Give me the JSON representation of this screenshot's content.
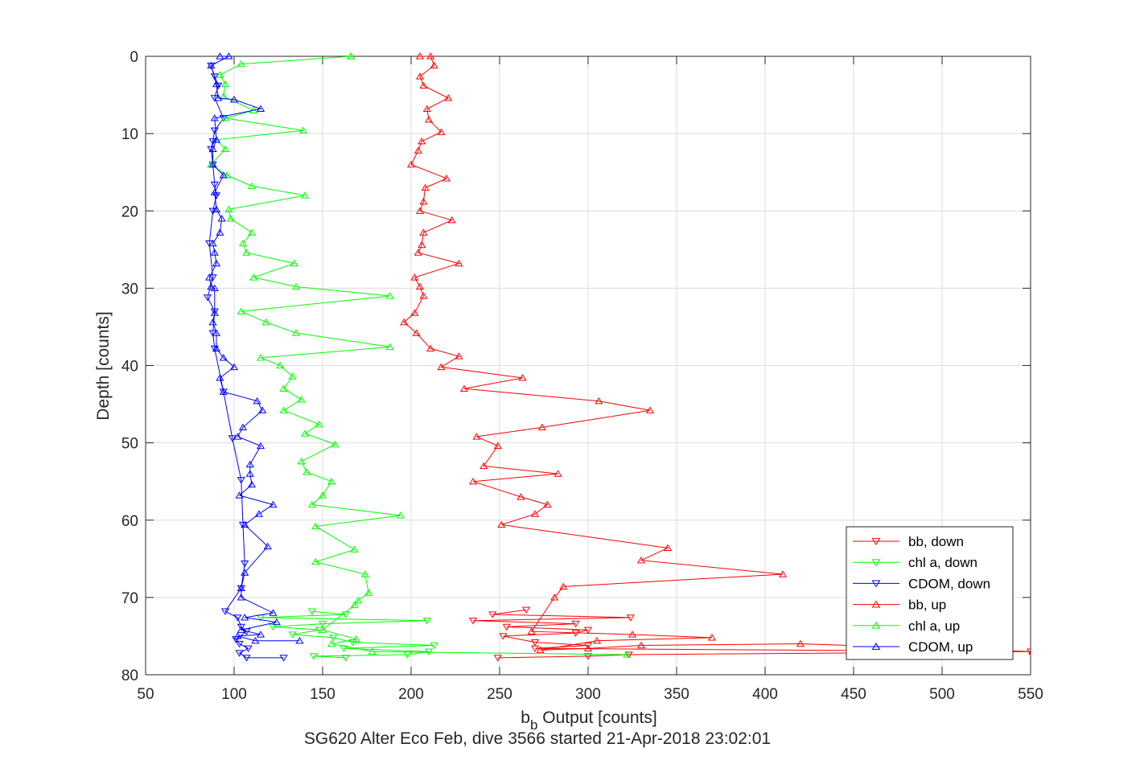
{
  "chart_data": {
    "type": "line",
    "title": "SG620 Alter Eco Feb, dive 3566 started 21-Apr-2018 23:02:01",
    "xlabel_main": "b",
    "xlabel_sub": "b",
    "xlabel_rest": " Output [counts]",
    "ylabel": "Depth [counts]",
    "xlim": [
      50,
      550
    ],
    "ylim": [
      0,
      80
    ],
    "y_reversed": true,
    "grid": true,
    "legend_position": "bottom-right",
    "x_ticks": [
      "50",
      "100",
      "150",
      "200",
      "250",
      "300",
      "350",
      "400",
      "450",
      "500",
      "550"
    ],
    "y_ticks": [
      "0",
      "10",
      "20",
      "30",
      "40",
      "50",
      "60",
      "70",
      "80"
    ],
    "series": [
      {
        "name": "bb, down",
        "color": "#ff0000",
        "marker": "triangle-down",
        "points": [
          [
            249,
            77.8
          ],
          [
            300,
            77.6
          ],
          [
            323,
            77.4
          ],
          [
            550,
            77.0
          ],
          [
            270,
            76.6
          ],
          [
            300,
            76.2
          ],
          [
            270,
            75.8
          ],
          [
            252,
            75.0
          ],
          [
            293,
            74.6
          ],
          [
            300,
            74.2
          ],
          [
            254,
            73.8
          ],
          [
            293,
            73.4
          ],
          [
            235,
            73.0
          ],
          [
            324,
            72.6
          ],
          [
            246,
            72.2
          ],
          [
            265,
            71.6
          ]
        ]
      },
      {
        "name": "chl a, down",
        "color": "#00ff00",
        "marker": "triangle-down",
        "points": [
          [
            163,
            77.8
          ],
          [
            145,
            77.6
          ],
          [
            198,
            77.4
          ],
          [
            210,
            77.0
          ],
          [
            162,
            76.6
          ],
          [
            213,
            76.2
          ],
          [
            167,
            75.8
          ],
          [
            156,
            75.2
          ],
          [
            133,
            74.8
          ],
          [
            148,
            74.2
          ],
          [
            122,
            73.8
          ],
          [
            150,
            73.4
          ],
          [
            209,
            73.0
          ],
          [
            115,
            72.6
          ],
          [
            163,
            72.2
          ],
          [
            144,
            71.8
          ]
        ]
      },
      {
        "name": "CDOM, down",
        "color": "#0000ff",
        "marker": "triangle-down",
        "points": [
          [
            87,
            1.2
          ],
          [
            89,
            2.6
          ],
          [
            91,
            3.8
          ],
          [
            89,
            5.4
          ],
          [
            94,
            8.0
          ],
          [
            89,
            9.6
          ],
          [
            88,
            11.0
          ],
          [
            87,
            12.0
          ],
          [
            88,
            14.0
          ],
          [
            89,
            16.6
          ],
          [
            90,
            18.0
          ],
          [
            88,
            20.0
          ],
          [
            86,
            24.2
          ],
          [
            88,
            28.6
          ],
          [
            85,
            31.2
          ],
          [
            89,
            33.0
          ],
          [
            88,
            35.8
          ],
          [
            89,
            37.8
          ],
          [
            94,
            43.4
          ],
          [
            99,
            49.4
          ],
          [
            104,
            54.8
          ],
          [
            105,
            60.6
          ],
          [
            106,
            65.6
          ],
          [
            104,
            68.8
          ],
          [
            95,
            71.8
          ],
          [
            102,
            72.6
          ],
          [
            104,
            73.8
          ],
          [
            107,
            74.4
          ],
          [
            101,
            75.4
          ],
          [
            103,
            76.0
          ],
          [
            108,
            76.6
          ],
          [
            103,
            77.2
          ],
          [
            107,
            77.8
          ],
          [
            128,
            77.8
          ]
        ]
      },
      {
        "name": "bb, up",
        "color": "#ff0000",
        "marker": "triangle-up",
        "points": [
          [
            551,
            77.0
          ],
          [
            420,
            76.0
          ],
          [
            330,
            76.2
          ],
          [
            300,
            76.6
          ],
          [
            273,
            76.8
          ],
          [
            305,
            75.6
          ],
          [
            370,
            75.2
          ],
          [
            325,
            74.8
          ],
          [
            268,
            74.4
          ],
          [
            281,
            70.0
          ],
          [
            286,
            68.6
          ],
          [
            410,
            67.0
          ],
          [
            330,
            65.2
          ],
          [
            345,
            63.6
          ],
          [
            251,
            60.6
          ],
          [
            270,
            59.2
          ],
          [
            277,
            58.0
          ],
          [
            262,
            57.0
          ],
          [
            235,
            55.0
          ],
          [
            283,
            54.0
          ],
          [
            241,
            53.0
          ],
          [
            249,
            50.4
          ],
          [
            237,
            49.2
          ],
          [
            274,
            48.0
          ],
          [
            335,
            45.8
          ],
          [
            306,
            44.6
          ],
          [
            230,
            43.0
          ],
          [
            263,
            41.6
          ],
          [
            217,
            40.2
          ],
          [
            227,
            38.8
          ],
          [
            211,
            37.8
          ],
          [
            203,
            35.8
          ],
          [
            196,
            34.4
          ],
          [
            202,
            33.2
          ],
          [
            207,
            31.0
          ],
          [
            205,
            29.8
          ],
          [
            202,
            28.6
          ],
          [
            227,
            26.8
          ],
          [
            204,
            25.4
          ],
          [
            206,
            24.4
          ],
          [
            207,
            22.8
          ],
          [
            223,
            21.2
          ],
          [
            205,
            20.0
          ],
          [
            207,
            18.8
          ],
          [
            208,
            17.0
          ],
          [
            220,
            15.8
          ],
          [
            200,
            14.0
          ],
          [
            204,
            12.2
          ],
          [
            206,
            11.0
          ],
          [
            217,
            9.8
          ],
          [
            210,
            8.2
          ],
          [
            209,
            6.8
          ],
          [
            221,
            5.4
          ],
          [
            207,
            3.8
          ],
          [
            205,
            2.6
          ],
          [
            213,
            1.2
          ],
          [
            211,
            0.0
          ],
          [
            205,
            0.0
          ]
        ]
      },
      {
        "name": "chl a, up",
        "color": "#00ff00",
        "marker": "triangle-up",
        "points": [
          [
            322,
            77.4
          ],
          [
            178,
            77.0
          ],
          [
            155,
            76.0
          ],
          [
            169,
            75.4
          ],
          [
            150,
            74.2
          ],
          [
            168,
            71.0
          ],
          [
            170,
            70.4
          ],
          [
            176,
            69.4
          ],
          [
            174,
            67.0
          ],
          [
            146,
            65.4
          ],
          [
            168,
            63.8
          ],
          [
            146,
            60.8
          ],
          [
            194,
            59.4
          ],
          [
            144,
            58.0
          ],
          [
            150,
            56.8
          ],
          [
            155,
            55.0
          ],
          [
            141,
            53.8
          ],
          [
            138,
            52.4
          ],
          [
            157,
            50.2
          ],
          [
            140,
            48.8
          ],
          [
            148,
            47.6
          ],
          [
            128,
            45.8
          ],
          [
            138,
            44.4
          ],
          [
            128,
            43.0
          ],
          [
            133,
            41.4
          ],
          [
            126,
            40.0
          ],
          [
            115,
            39.0
          ],
          [
            188,
            37.6
          ],
          [
            135,
            35.8
          ],
          [
            118,
            34.4
          ],
          [
            104,
            33.0
          ],
          [
            188,
            31.0
          ],
          [
            135,
            29.8
          ],
          [
            111,
            28.6
          ],
          [
            134,
            26.8
          ],
          [
            107,
            25.4
          ],
          [
            105,
            24.2
          ],
          [
            110,
            22.8
          ],
          [
            98,
            21.0
          ],
          [
            97,
            19.8
          ],
          [
            140,
            18.0
          ],
          [
            110,
            16.8
          ],
          [
            96,
            15.4
          ],
          [
            87,
            14.0
          ],
          [
            95,
            12.0
          ],
          [
            90,
            10.8
          ],
          [
            139,
            9.6
          ],
          [
            95,
            8.0
          ],
          [
            111,
            7.0
          ],
          [
            94,
            5.2
          ],
          [
            95,
            3.6
          ],
          [
            92,
            2.4
          ],
          [
            104,
            1.0
          ],
          [
            166,
            0.0
          ],
          [
            166,
            0.0
          ]
        ]
      },
      {
        "name": "CDOM, up",
        "color": "#0000ff",
        "marker": "triangle-up",
        "points": [
          [
            137,
            75.6
          ],
          [
            112,
            75.6
          ],
          [
            102,
            75.0
          ],
          [
            115,
            74.8
          ],
          [
            104,
            74.2
          ],
          [
            124,
            73.2
          ],
          [
            106,
            72.6
          ],
          [
            122,
            72.0
          ],
          [
            104,
            70.0
          ],
          [
            104,
            68.8
          ],
          [
            106,
            66.8
          ],
          [
            119,
            63.4
          ],
          [
            106,
            60.6
          ],
          [
            114,
            59.2
          ],
          [
            122,
            58.0
          ],
          [
            103,
            56.8
          ],
          [
            110,
            55.4
          ],
          [
            109,
            54.0
          ],
          [
            109,
            52.8
          ],
          [
            115,
            50.4
          ],
          [
            102,
            49.2
          ],
          [
            105,
            48.0
          ],
          [
            116,
            45.8
          ],
          [
            113,
            44.6
          ],
          [
            94,
            43.4
          ],
          [
            92,
            41.6
          ],
          [
            100,
            40.2
          ],
          [
            94,
            39.0
          ],
          [
            90,
            37.8
          ],
          [
            90,
            35.8
          ],
          [
            88,
            34.4
          ],
          [
            89,
            33.2
          ],
          [
            89,
            30.0
          ],
          [
            87,
            29.8
          ],
          [
            86,
            28.6
          ],
          [
            90,
            26.8
          ],
          [
            89,
            25.4
          ],
          [
            88,
            24.2
          ],
          [
            92,
            22.8
          ],
          [
            93,
            21.0
          ],
          [
            90,
            19.8
          ],
          [
            89,
            17.6
          ],
          [
            94,
            15.4
          ],
          [
            88,
            14.0
          ],
          [
            88,
            12.0
          ],
          [
            90,
            10.8
          ],
          [
            89,
            8.0
          ],
          [
            115,
            6.8
          ],
          [
            100,
            5.6
          ],
          [
            91,
            5.4
          ],
          [
            90,
            3.6
          ],
          [
            87,
            1.2
          ],
          [
            97,
            0.0
          ],
          [
            92,
            0.0
          ]
        ]
      }
    ]
  }
}
